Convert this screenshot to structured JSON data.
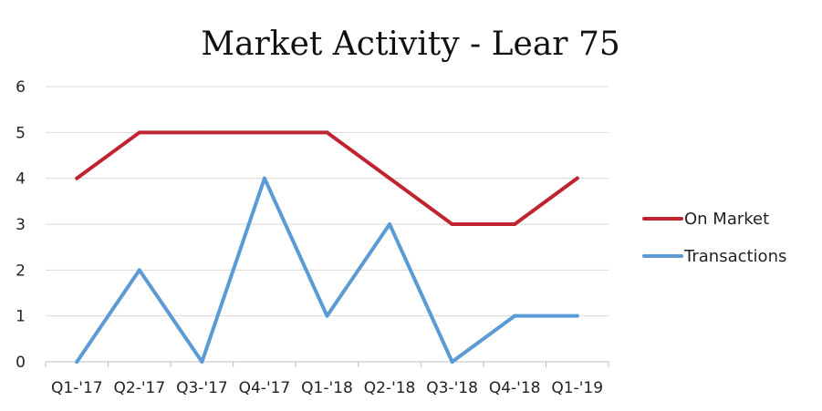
{
  "chart_data": {
    "type": "line",
    "title": "Market Activity - Lear 75",
    "xlabel": "",
    "ylabel": "",
    "categories": [
      "Q1-'17",
      "Q2-'17",
      "Q3-'17",
      "Q4-'17",
      "Q1-'18",
      "Q2-'18",
      "Q3-'18",
      "Q4-'18",
      "Q1-'19"
    ],
    "ylim": [
      0,
      6
    ],
    "yticks": [
      0,
      1,
      2,
      3,
      4,
      5,
      6
    ],
    "grid": true,
    "legend_position": "right",
    "series": [
      {
        "name": "On Market",
        "color": "#c0242f",
        "values": [
          4,
          5,
          5,
          5,
          5,
          4,
          3,
          3,
          4
        ]
      },
      {
        "name": "Transactions",
        "color": "#5b9bd5",
        "values": [
          0,
          2,
          0,
          4,
          1,
          3,
          0,
          1,
          1
        ]
      }
    ]
  }
}
